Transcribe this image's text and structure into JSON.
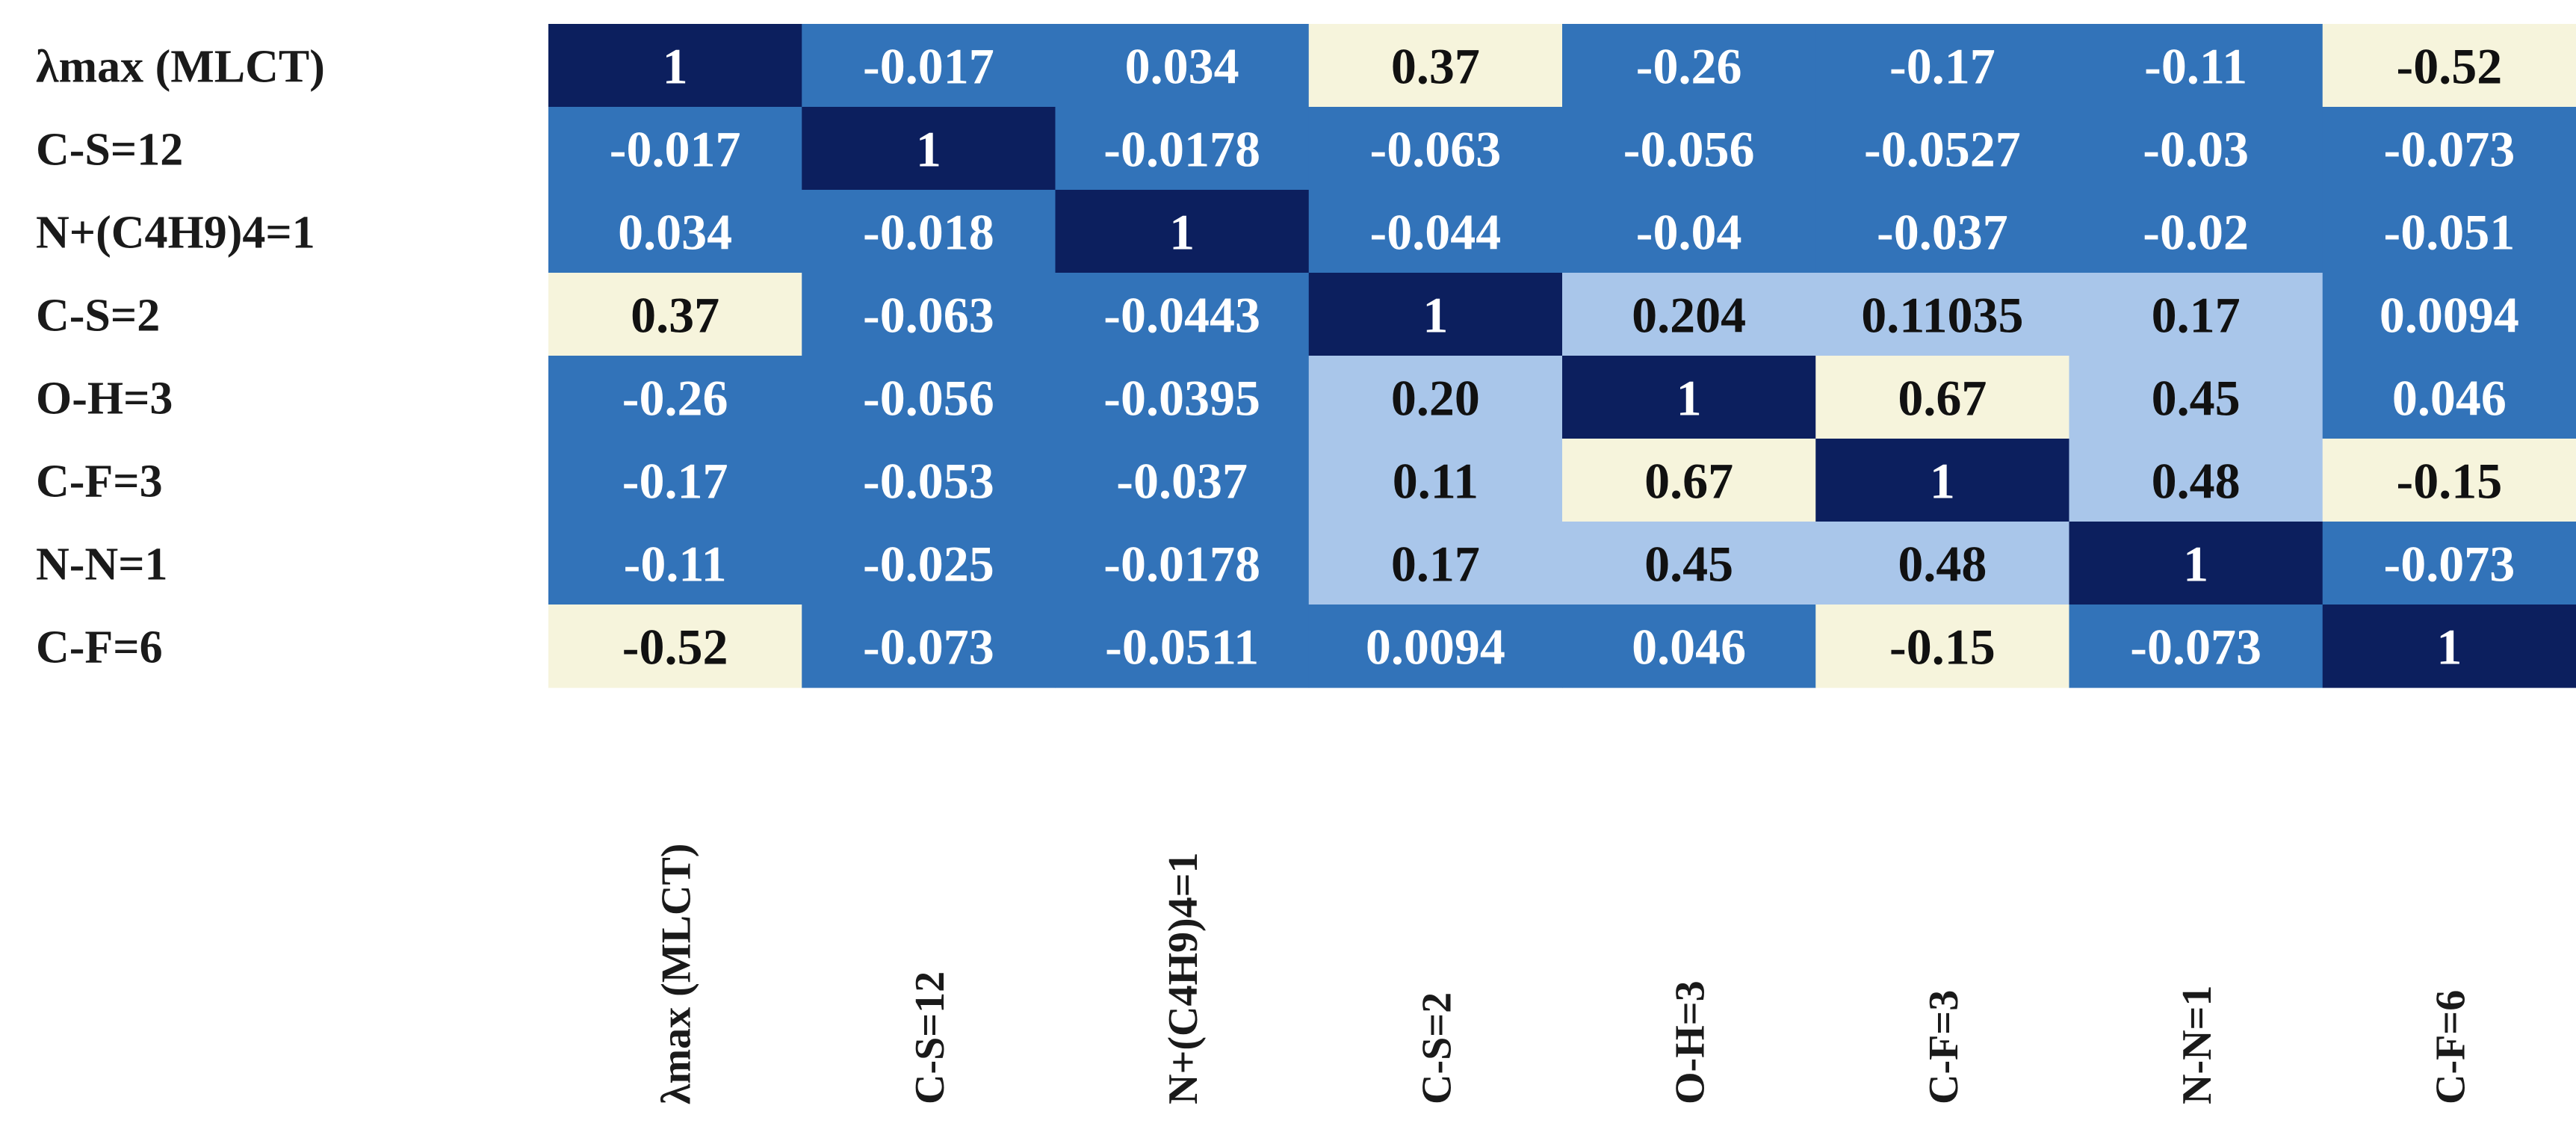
{
  "chart_data": {
    "type": "heatmap",
    "title": "",
    "row_labels": [
      "λmax (MLCT)",
      "C-S=12",
      "N+(C4H9)4=1",
      "C-S=2",
      "O-H=3",
      "C-F=3",
      "N-N=1",
      "C-F=6"
    ],
    "col_labels": [
      "λmax (MLCT)",
      "C-S=12",
      "N+(C4H9)4=1",
      "C-S=2",
      "O-H=3",
      "C-F=3",
      "N-N=1",
      "C-F=6"
    ],
    "values": [
      [
        "1",
        "-0.017",
        "0.034",
        "0.37",
        "-0.26",
        "-0.17",
        "-0.11",
        "-0.52"
      ],
      [
        "-0.017",
        "1",
        "-0.0178",
        "-0.063",
        "-0.056",
        "-0.0527",
        "-0.03",
        "-0.073"
      ],
      [
        "0.034",
        "-0.018",
        "1",
        "-0.044",
        "-0.04",
        "-0.037",
        "-0.02",
        "-0.051"
      ],
      [
        "0.37",
        "-0.063",
        "-0.0443",
        "1",
        "0.204",
        "0.11035",
        "0.17",
        "0.0094"
      ],
      [
        "-0.26",
        "-0.056",
        "-0.0395",
        "0.20",
        "1",
        "0.67",
        "0.45",
        "0.046"
      ],
      [
        "-0.17",
        "-0.053",
        "-0.037",
        "0.11",
        "0.67",
        "1",
        "0.48",
        "-0.15"
      ],
      [
        "-0.11",
        "-0.025",
        "-0.0178",
        "0.17",
        "0.45",
        "0.48",
        "1",
        "-0.073"
      ],
      [
        "-0.52",
        "-0.073",
        "-0.0511",
        "0.0094",
        "0.046",
        "-0.15",
        "-0.073",
        "1"
      ]
    ],
    "color_scale": [
      {
        "category": "diagonal",
        "fill": "#0c1f5e",
        "text": "#ffffff"
      },
      {
        "category": "moderate-positive",
        "fill": "#a9c6ea",
        "text": "#111111"
      },
      {
        "category": "near-zero",
        "fill": "#3273b9",
        "text": "#ffffff"
      },
      {
        "category": "strong-off-diagonal",
        "fill": "#f6f4dc",
        "text": "#111111"
      }
    ],
    "cell_categories": [
      [
        "diagonal",
        "near-zero",
        "near-zero",
        "strong-off-diagonal",
        "near-zero",
        "near-zero",
        "near-zero",
        "strong-off-diagonal"
      ],
      [
        "near-zero",
        "diagonal",
        "near-zero",
        "near-zero",
        "near-zero",
        "near-zero",
        "near-zero",
        "near-zero"
      ],
      [
        "near-zero",
        "near-zero",
        "diagonal",
        "near-zero",
        "near-zero",
        "near-zero",
        "near-zero",
        "near-zero"
      ],
      [
        "strong-off-diagonal",
        "near-zero",
        "near-zero",
        "diagonal",
        "moderate-positive",
        "moderate-positive",
        "moderate-positive",
        "near-zero"
      ],
      [
        "near-zero",
        "near-zero",
        "near-zero",
        "moderate-positive",
        "diagonal",
        "strong-off-diagonal",
        "moderate-positive",
        "near-zero"
      ],
      [
        "near-zero",
        "near-zero",
        "near-zero",
        "moderate-positive",
        "strong-off-diagonal",
        "diagonal",
        "moderate-positive",
        "strong-off-diagonal"
      ],
      [
        "near-zero",
        "near-zero",
        "near-zero",
        "moderate-positive",
        "moderate-positive",
        "moderate-positive",
        "diagonal",
        "near-zero"
      ],
      [
        "strong-off-diagonal",
        "near-zero",
        "near-zero",
        "near-zero",
        "near-zero",
        "strong-off-diagonal",
        "near-zero",
        "diagonal"
      ]
    ],
    "legend": "none",
    "grid": false
  }
}
